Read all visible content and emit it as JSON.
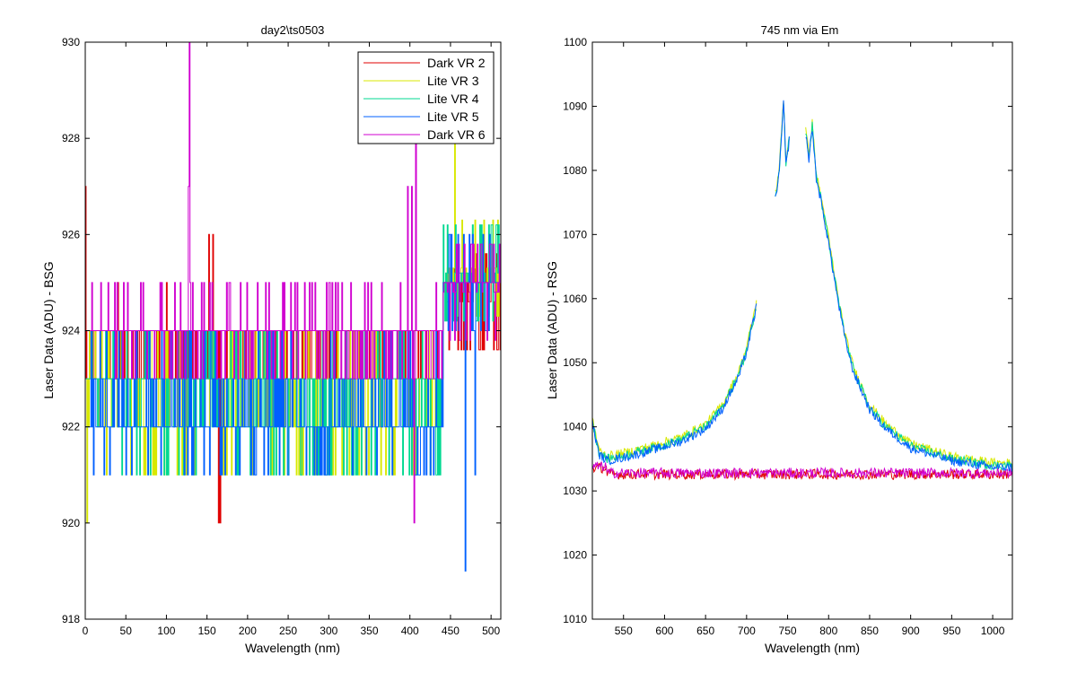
{
  "colors": {
    "background": "#ffffff",
    "axes": "#000000",
    "series": [
      "#e00000",
      "#d8e800",
      "#00d890",
      "#0060ff",
      "#d000d0"
    ]
  },
  "chart_data": [
    {
      "type": "line",
      "title": "day2\\ts0503",
      "xlabel": "Wavelength (nm)",
      "ylabel": "Laser Data (ADU) - BSG",
      "xlim": [
        0,
        512
      ],
      "ylim": [
        918,
        930
      ],
      "xticks": [
        0,
        50,
        100,
        150,
        200,
        250,
        300,
        350,
        400,
        450,
        500
      ],
      "yticks": [
        918,
        920,
        922,
        924,
        926,
        928,
        930
      ],
      "grid": false,
      "legend": {
        "placement": "top-right",
        "entries": [
          "Dark VR 2",
          "Lite VR 3",
          "Lite VR 4",
          "Lite VR 5",
          "Dark VR 6"
        ]
      },
      "series": [
        {
          "name": "Dark VR 2",
          "baseline": 923.7,
          "noise_range": [
            923,
            924
          ],
          "late_level": 924.6,
          "spikes": [
            [
              0,
              927
            ],
            [
              40,
              925
            ],
            [
              100,
              925
            ],
            [
              152,
              926
            ],
            [
              157,
              926
            ],
            [
              164,
              920
            ],
            [
              166,
              920
            ],
            [
              450,
              925
            ]
          ]
        },
        {
          "name": "Lite VR 3",
          "baseline": 922.6,
          "noise_range": [
            921,
            924
          ],
          "late_level": 925.3,
          "spikes": [
            [
              2,
              920
            ],
            [
              455,
              928
            ],
            [
              420,
              922
            ]
          ]
        },
        {
          "name": "Lite VR 4",
          "baseline": 922.9,
          "noise_range": [
            921,
            924
          ],
          "late_level": 925.2,
          "spikes": [
            [
              330,
              921
            ]
          ]
        },
        {
          "name": "Lite VR 5",
          "baseline": 922.4,
          "noise_range": [
            921,
            924
          ],
          "late_level": 925.0,
          "spikes": [
            [
              468,
              919
            ],
            [
              480,
              921
            ]
          ]
        },
        {
          "name": "Dark VR 6",
          "baseline": 923.9,
          "noise_range": [
            923,
            925
          ],
          "late_level": 924.8,
          "spikes": [
            [
              128,
              930
            ],
            [
              127,
              927
            ],
            [
              397,
              927
            ],
            [
              405,
              920
            ],
            [
              407,
              928
            ],
            [
              402,
              927
            ]
          ]
        }
      ]
    },
    {
      "type": "line",
      "title": "745 nm via Em",
      "xlabel": "Wavelength (nm)",
      "ylabel": "Laser Data (ADU) - RSG",
      "xlim": [
        512,
        1024
      ],
      "ylim": [
        1010,
        1100
      ],
      "xticks": [
        550,
        600,
        650,
        700,
        750,
        800,
        850,
        900,
        950,
        1000
      ],
      "yticks": [
        1010,
        1020,
        1030,
        1040,
        1050,
        1060,
        1070,
        1080,
        1090,
        1100
      ],
      "grid": false,
      "peak_curve": {
        "x": [
          512,
          520,
          530,
          550,
          580,
          620,
          650,
          670,
          690,
          700,
          712
        ],
        "y": [
          1041,
          1036,
          1035,
          1035.5,
          1036.5,
          1038,
          1040,
          1043,
          1048,
          1052,
          1059
        ]
      },
      "peak_curve_2": {
        "x": [
          735,
          740,
          745,
          748,
          752
        ],
        "y": [
          1076,
          1080,
          1091,
          1081,
          1085
        ]
      },
      "peak_curve_3": {
        "x": [
          772,
          776,
          780,
          785,
          790,
          800,
          810,
          820,
          830,
          850,
          870,
          900,
          950,
          1000,
          1024
        ],
        "y": [
          1086,
          1082,
          1087,
          1079,
          1076,
          1069,
          1061,
          1054,
          1049,
          1043,
          1040,
          1037,
          1035,
          1034,
          1034
        ]
      },
      "series": [
        {
          "name": "Dark VR 2",
          "flat_level": 1032.6,
          "noise": 0.8
        },
        {
          "name": "Lite VR 3",
          "offset": 0.4
        },
        {
          "name": "Lite VR 4",
          "offset": 0.0
        },
        {
          "name": "Lite VR 5",
          "offset": -0.3
        },
        {
          "name": "Dark VR 6",
          "flat_level": 1032.8,
          "noise": 0.8
        }
      ]
    }
  ]
}
